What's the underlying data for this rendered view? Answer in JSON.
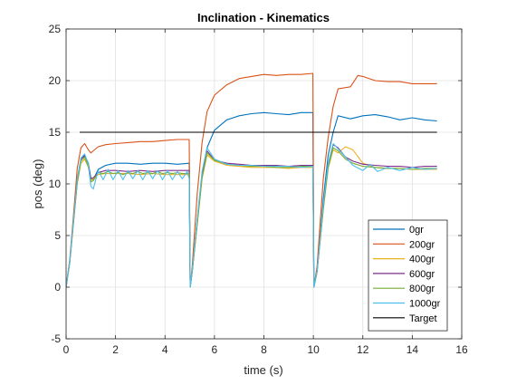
{
  "chart_data": {
    "type": "line",
    "title": "Inclination - Kinematics",
    "xlabel": "time (s)",
    "ylabel": "pos (deg)",
    "xlim": [
      0,
      16
    ],
    "ylim": [
      -5,
      25
    ],
    "xticks": [
      0,
      2,
      4,
      6,
      8,
      10,
      12,
      14,
      16
    ],
    "yticks": [
      -5,
      0,
      5,
      10,
      15,
      20,
      25
    ],
    "grid": true,
    "legend_position": "bottom-right",
    "series": [
      {
        "name": "0gr",
        "color": "#0072BD",
        "x": [
          0,
          0.15,
          0.3,
          0.45,
          0.6,
          0.75,
          0.9,
          1.0,
          1.1,
          1.3,
          1.6,
          2.0,
          2.5,
          3.0,
          3.5,
          4.0,
          4.5,
          4.98,
          5.02,
          5.1,
          5.3,
          5.5,
          5.7,
          6.0,
          6.5,
          7.0,
          7.5,
          8.0,
          8.5,
          9.0,
          9.5,
          9.98,
          10.02,
          10.15,
          10.4,
          10.6,
          10.8,
          11.0,
          11.5,
          12.0,
          12.5,
          13.0,
          13.5,
          14.0,
          14.5,
          15.0
        ],
        "values": [
          0,
          2.5,
          6.5,
          10.5,
          12.4,
          12.8,
          12.0,
          10.6,
          10.4,
          11.4,
          11.8,
          12.0,
          12.0,
          11.9,
          12.0,
          12.0,
          11.9,
          12.0,
          0,
          1.5,
          6.5,
          11.0,
          13.5,
          15.2,
          16.2,
          16.6,
          16.8,
          16.9,
          16.8,
          16.7,
          16.9,
          16.9,
          0,
          1.5,
          8.5,
          12.8,
          15.0,
          16.6,
          16.3,
          16.6,
          16.7,
          16.5,
          16.2,
          16.4,
          16.2,
          16.1
        ]
      },
      {
        "name": "200gr",
        "color": "#D95319",
        "x": [
          0,
          0.15,
          0.3,
          0.45,
          0.6,
          0.75,
          0.9,
          1.0,
          1.1,
          1.3,
          1.6,
          2.0,
          2.5,
          3.0,
          3.5,
          4.0,
          4.5,
          4.98,
          5.02,
          5.1,
          5.3,
          5.5,
          5.7,
          6.0,
          6.5,
          7.0,
          7.5,
          8.0,
          8.5,
          9.0,
          9.5,
          9.98,
          10.02,
          10.15,
          10.4,
          10.6,
          10.8,
          11.0,
          11.5,
          11.8,
          12.0,
          12.5,
          13.0,
          13.5,
          14.0,
          14.5,
          15.0
        ],
        "values": [
          0,
          2.7,
          7.0,
          11.5,
          13.5,
          13.9,
          13.3,
          13.0,
          13.2,
          13.6,
          13.8,
          13.9,
          14.0,
          14.1,
          14.1,
          14.2,
          14.3,
          14.3,
          0,
          2.0,
          9.0,
          14.0,
          17.0,
          18.6,
          19.6,
          20.2,
          20.4,
          20.6,
          20.5,
          20.6,
          20.6,
          20.7,
          0,
          2.0,
          10.5,
          14.5,
          17.5,
          19.2,
          19.4,
          20.5,
          20.4,
          20.0,
          19.9,
          19.9,
          19.7,
          19.7,
          19.7
        ]
      },
      {
        "name": "400gr",
        "color": "#EDB120",
        "x": [
          0,
          0.15,
          0.3,
          0.45,
          0.6,
          0.75,
          0.9,
          1.0,
          1.1,
          1.3,
          1.6,
          2.0,
          2.5,
          3.0,
          3.5,
          4.0,
          4.5,
          4.98,
          5.02,
          5.1,
          5.3,
          5.5,
          5.7,
          6.0,
          6.5,
          7.0,
          7.5,
          8.0,
          8.5,
          9.0,
          9.5,
          9.98,
          10.02,
          10.15,
          10.4,
          10.6,
          10.8,
          11.0,
          11.3,
          11.6,
          12.0,
          12.5,
          13.0,
          13.5,
          14.0,
          14.5,
          15.0
        ],
        "values": [
          0,
          2.4,
          6.2,
          10.0,
          12.0,
          12.4,
          11.6,
          10.3,
          10.5,
          10.9,
          11.0,
          11.0,
          11.0,
          10.9,
          11.0,
          10.9,
          10.9,
          10.9,
          0,
          1.5,
          6.0,
          10.5,
          12.8,
          12.2,
          11.8,
          11.7,
          11.6,
          11.6,
          11.6,
          11.5,
          11.6,
          11.6,
          0,
          1.5,
          7.5,
          11.5,
          13.3,
          13.0,
          13.6,
          13.3,
          12.0,
          11.6,
          11.5,
          11.5,
          11.4,
          11.4,
          11.4
        ]
      },
      {
        "name": "600gr",
        "color": "#7E2F8E",
        "x": [
          0,
          0.15,
          0.3,
          0.45,
          0.6,
          0.75,
          0.9,
          1.0,
          1.1,
          1.3,
          1.6,
          2.0,
          2.5,
          3.0,
          3.5,
          4.0,
          4.5,
          4.98,
          5.02,
          5.1,
          5.3,
          5.5,
          5.7,
          6.0,
          6.5,
          7.0,
          7.5,
          8.0,
          8.5,
          9.0,
          9.5,
          9.98,
          10.02,
          10.15,
          10.4,
          10.6,
          10.8,
          11.0,
          11.3,
          11.6,
          12.0,
          12.5,
          13.0,
          13.5,
          14.0,
          14.5,
          15.0
        ],
        "values": [
          0,
          2.5,
          6.4,
          10.2,
          12.4,
          12.7,
          11.8,
          10.5,
          10.6,
          11.1,
          11.3,
          11.3,
          11.2,
          11.3,
          11.2,
          11.3,
          11.3,
          11.3,
          0,
          1.5,
          6.2,
          10.8,
          13.2,
          12.3,
          12.0,
          11.9,
          11.8,
          11.8,
          11.8,
          11.7,
          11.8,
          11.8,
          0,
          1.5,
          7.8,
          11.8,
          13.8,
          13.5,
          12.6,
          12.2,
          11.9,
          11.8,
          11.7,
          11.7,
          11.6,
          11.7,
          11.7
        ]
      },
      {
        "name": "800gr",
        "color": "#77AC30",
        "x": [
          0,
          0.15,
          0.3,
          0.45,
          0.6,
          0.75,
          0.9,
          1.0,
          1.1,
          1.3,
          1.5,
          1.7,
          1.9,
          2.1,
          2.3,
          2.5,
          2.7,
          2.9,
          3.1,
          3.3,
          3.5,
          3.7,
          3.9,
          4.1,
          4.3,
          4.5,
          4.7,
          4.98,
          5.02,
          5.1,
          5.3,
          5.5,
          5.7,
          6.0,
          6.5,
          7.0,
          7.5,
          8.0,
          8.5,
          9.0,
          9.5,
          9.98,
          10.02,
          10.15,
          10.4,
          10.6,
          10.8,
          11.0,
          11.3,
          11.6,
          12.0,
          12.5,
          13.0,
          13.5,
          14.0,
          14.5,
          15.0
        ],
        "values": [
          0,
          2.4,
          6.3,
          10.1,
          12.2,
          12.6,
          11.7,
          10.2,
          10.3,
          11.1,
          11.0,
          11.2,
          11.0,
          11.1,
          10.9,
          11.1,
          11.0,
          11.2,
          11.0,
          11.1,
          11.0,
          11.2,
          11.0,
          11.1,
          11.0,
          11.1,
          11.0,
          11.0,
          0,
          1.5,
          6.1,
          10.6,
          13.0,
          12.3,
          11.9,
          11.8,
          11.7,
          11.7,
          11.6,
          11.6,
          11.7,
          11.7,
          0,
          1.5,
          7.6,
          11.6,
          13.5,
          13.2,
          12.4,
          12.0,
          11.7,
          11.6,
          11.5,
          11.5,
          11.4,
          11.5,
          11.5
        ]
      },
      {
        "name": "1000gr",
        "color": "#4DBEEE",
        "x": [
          0,
          0.15,
          0.3,
          0.45,
          0.6,
          0.75,
          0.9,
          1.0,
          1.1,
          1.3,
          1.5,
          1.7,
          1.9,
          2.1,
          2.3,
          2.5,
          2.7,
          2.9,
          3.1,
          3.3,
          3.5,
          3.7,
          3.9,
          4.1,
          4.3,
          4.5,
          4.7,
          4.9,
          4.98,
          5.02,
          5.1,
          5.3,
          5.5,
          5.7,
          6.0,
          6.5,
          7.0,
          7.5,
          8.0,
          8.5,
          9.0,
          9.5,
          9.98,
          10.02,
          10.15,
          10.4,
          10.6,
          10.8,
          11.0,
          11.3,
          11.6,
          12.0,
          12.3,
          12.6,
          13.0,
          13.5,
          14.0,
          14.5,
          15.0
        ],
        "values": [
          0,
          2.5,
          6.5,
          10.4,
          12.5,
          12.9,
          11.9,
          9.8,
          9.5,
          11.3,
          10.4,
          11.4,
          10.4,
          11.3,
          10.4,
          11.3,
          10.5,
          11.3,
          10.4,
          11.3,
          10.5,
          11.3,
          10.4,
          11.3,
          10.4,
          11.2,
          10.5,
          11.2,
          10.5,
          0,
          1.6,
          6.6,
          11.2,
          13.5,
          12.4,
          11.9,
          11.8,
          11.8,
          11.7,
          11.7,
          11.7,
          11.6,
          11.7,
          0,
          1.6,
          8.0,
          12.0,
          13.9,
          13.4,
          12.6,
          11.8,
          11.3,
          11.9,
          11.2,
          11.6,
          11.3,
          11.6,
          11.4,
          11.5
        ]
      },
      {
        "name": "Target",
        "color": "#000000",
        "x": [
          0.55,
          15.0
        ],
        "values": [
          15,
          15
        ]
      }
    ]
  }
}
